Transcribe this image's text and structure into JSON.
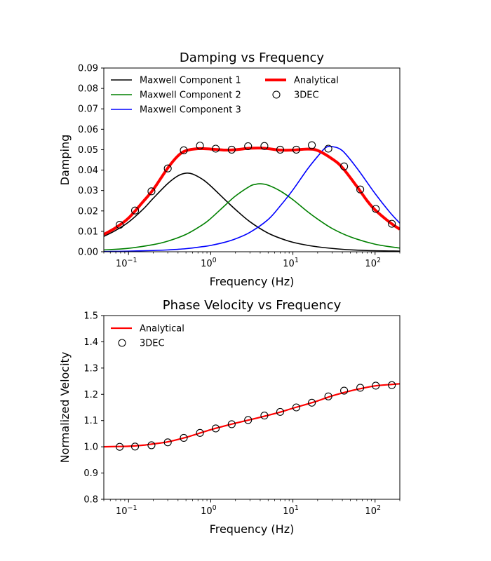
{
  "chart_data": [
    {
      "type": "line",
      "title": "Damping vs Frequency",
      "xlabel": "Frequency (Hz)",
      "ylabel": "Damping",
      "xscale": "log",
      "xlim": [
        0.05,
        200
      ],
      "ylim": [
        0.0,
        0.09
      ],
      "yticks": [
        "0.00",
        "0.01",
        "0.02",
        "0.03",
        "0.04",
        "0.05",
        "0.06",
        "0.07",
        "0.08",
        "0.09"
      ],
      "xticks": [
        {
          "value": 0.1,
          "base": "10",
          "exp": "−1"
        },
        {
          "value": 1,
          "base": "10",
          "exp": "0"
        },
        {
          "value": 10,
          "base": "10",
          "exp": "1"
        },
        {
          "value": 100,
          "base": "10",
          "exp": "2"
        }
      ],
      "grid": false,
      "legend_position": "top-left",
      "series": [
        {
          "name": "Maxwell Component 1",
          "color": "#000000",
          "style": "line",
          "x": [
            0.05,
            0.07,
            0.1,
            0.15,
            0.2,
            0.3,
            0.4,
            0.5,
            0.6,
            0.8,
            1,
            1.5,
            2,
            3,
            5,
            8,
            12,
            20,
            40,
            80,
            200
          ],
          "y": [
            0.0075,
            0.0105,
            0.0145,
            0.0208,
            0.0262,
            0.0334,
            0.0372,
            0.0385,
            0.0381,
            0.0354,
            0.0322,
            0.0254,
            0.0207,
            0.0147,
            0.0091,
            0.0058,
            0.0039,
            0.0024,
            0.0012,
            0.0006,
            0.0003
          ]
        },
        {
          "name": "Maxwell Component 2",
          "color": "#008000",
          "style": "line",
          "x": [
            0.05,
            0.1,
            0.2,
            0.3,
            0.5,
            0.8,
            1,
            1.5,
            2,
            3,
            3.5,
            4,
            5,
            7,
            10,
            15,
            20,
            30,
            50,
            100,
            200
          ],
          "y": [
            0.0009,
            0.0017,
            0.0035,
            0.0052,
            0.0085,
            0.0133,
            0.0163,
            0.0228,
            0.0273,
            0.0321,
            0.033,
            0.0333,
            0.0326,
            0.0298,
            0.0255,
            0.0197,
            0.016,
            0.0114,
            0.0073,
            0.0037,
            0.0018
          ]
        },
        {
          "name": "Maxwell Component 3",
          "color": "#0000ff",
          "style": "line",
          "x": [
            0.05,
            0.1,
            0.2,
            0.3,
            0.5,
            0.8,
            1,
            1.5,
            2,
            3,
            5,
            7,
            10,
            15,
            20,
            25,
            30,
            40,
            60,
            100,
            150,
            200
          ],
          "y": [
            0.0001,
            0.0003,
            0.0006,
            0.0009,
            0.0015,
            0.0025,
            0.0031,
            0.0047,
            0.0063,
            0.0095,
            0.0158,
            0.0224,
            0.0303,
            0.0404,
            0.0467,
            0.051,
            0.0515,
            0.0495,
            0.041,
            0.0285,
            0.0195,
            0.014
          ]
        },
        {
          "name": "Analytical",
          "color": "#ff0000",
          "style": "thick-line",
          "x": [
            0.05,
            0.07,
            0.1,
            0.15,
            0.2,
            0.3,
            0.4,
            0.5,
            0.7,
            1,
            1.5,
            2,
            3,
            4,
            5,
            7,
            10,
            15,
            20,
            30,
            40,
            60,
            80,
            100,
            150,
            200
          ],
          "y": [
            0.0085,
            0.0118,
            0.0165,
            0.0245,
            0.0305,
            0.041,
            0.047,
            0.0495,
            0.0505,
            0.0503,
            0.0498,
            0.05,
            0.0507,
            0.0508,
            0.0505,
            0.0498,
            0.0498,
            0.0503,
            0.0496,
            0.0455,
            0.0412,
            0.032,
            0.025,
            0.0205,
            0.0145,
            0.011
          ]
        },
        {
          "name": "3DEC",
          "color": "#000000",
          "style": "open-circles",
          "x": [
            0.078,
            0.12,
            0.19,
            0.3,
            0.47,
            0.74,
            1.15,
            1.8,
            2.85,
            4.5,
            7,
            11,
            17,
            27,
            42,
            66,
            102,
            160
          ],
          "y": [
            0.0132,
            0.0202,
            0.0296,
            0.0408,
            0.0497,
            0.052,
            0.0505,
            0.05,
            0.0517,
            0.0518,
            0.05,
            0.05,
            0.0522,
            0.0505,
            0.0418,
            0.0305,
            0.021,
            0.0137
          ]
        }
      ]
    },
    {
      "type": "line",
      "title": "Phase Velocity vs Frequency",
      "xlabel": "Frequency (Hz)",
      "ylabel": "Normalized Velocity",
      "xscale": "log",
      "xlim": [
        0.05,
        200
      ],
      "ylim": [
        0.8,
        1.5
      ],
      "yticks": [
        "0.8",
        "0.9",
        "1.0",
        "1.1",
        "1.2",
        "1.3",
        "1.4",
        "1.5"
      ],
      "xticks": [
        {
          "value": 0.1,
          "base": "10",
          "exp": "−1"
        },
        {
          "value": 1,
          "base": "10",
          "exp": "0"
        },
        {
          "value": 10,
          "base": "10",
          "exp": "1"
        },
        {
          "value": 100,
          "base": "10",
          "exp": "2"
        }
      ],
      "grid": false,
      "legend_position": "top-left",
      "series": [
        {
          "name": "Analytical",
          "color": "#ff0000",
          "style": "line",
          "x": [
            0.05,
            0.07,
            0.1,
            0.15,
            0.2,
            0.3,
            0.5,
            0.7,
            1,
            1.5,
            2,
            3,
            5,
            7,
            10,
            15,
            20,
            30,
            50,
            70,
            100,
            150,
            200
          ],
          "y": [
            1.0,
            1.001,
            1.002,
            1.006,
            1.011,
            1.019,
            1.036,
            1.05,
            1.065,
            1.08,
            1.09,
            1.103,
            1.12,
            1.132,
            1.147,
            1.163,
            1.175,
            1.194,
            1.213,
            1.223,
            1.232,
            1.237,
            1.24
          ]
        },
        {
          "name": "3DEC",
          "color": "#000000",
          "style": "open-circles",
          "x": [
            0.078,
            0.12,
            0.19,
            0.3,
            0.47,
            0.74,
            1.15,
            1.8,
            2.85,
            4.5,
            7,
            11,
            17,
            27,
            42,
            66,
            102,
            160
          ],
          "y": [
            1.0,
            1.001,
            1.006,
            1.017,
            1.034,
            1.053,
            1.07,
            1.086,
            1.102,
            1.119,
            1.133,
            1.15,
            1.168,
            1.192,
            1.214,
            1.225,
            1.233,
            1.235
          ]
        }
      ]
    }
  ]
}
